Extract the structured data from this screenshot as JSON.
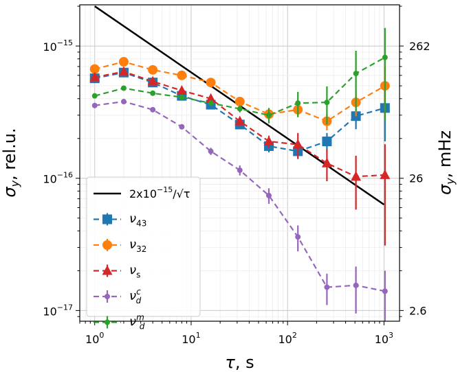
{
  "chart_data": {
    "type": "line",
    "xscale": "log",
    "yscale": "log",
    "xlim": [
      0.7,
      1450
    ],
    "ylim": [
      8.3e-18,
      2.05e-15
    ],
    "grid": true,
    "legend_placement": "lower-left",
    "axes": {
      "x": {
        "label_main": "τ",
        "label_rest": ", s",
        "ticks": [
          {
            "value": 1,
            "base": "10",
            "exp": "0"
          },
          {
            "value": 10,
            "base": "10",
            "exp": "1"
          },
          {
            "value": 100,
            "base": "10",
            "exp": "2"
          },
          {
            "value": 1000,
            "base": "10",
            "exp": "3"
          }
        ]
      },
      "y_left": {
        "label_main": "σ",
        "label_sub": "y",
        "label_rest": ", rel.u.",
        "ticks": [
          {
            "value": 1e-17,
            "base": "10",
            "exp": "−17"
          },
          {
            "value": 1e-16,
            "base": "10",
            "exp": "−16"
          },
          {
            "value": 1e-15,
            "base": "10",
            "exp": "−15"
          }
        ]
      },
      "y_right": {
        "label_main": "σ",
        "label_sub": "y",
        "label_rest": ", mHz",
        "ticks": [
          {
            "value": 1e-17,
            "label": "2.6"
          },
          {
            "value": 1e-16,
            "label": "26"
          },
          {
            "value": 1e-15,
            "label": "262"
          }
        ]
      }
    },
    "reference_line": {
      "color": "#000000",
      "coefficient": 2e-15,
      "x_range": [
        1,
        1000
      ],
      "legend": {
        "prefix": "2x10",
        "exp": "−15",
        "suffix": "/√τ"
      }
    },
    "series": [
      {
        "name": {
          "main": "ν",
          "sub": "43",
          "sup": ""
        },
        "color": "#1f77b4",
        "marker": "square",
        "x": [
          1,
          2,
          4,
          8,
          16,
          32,
          64,
          128,
          256,
          512,
          1024
        ],
        "y": [
          5.7e-16,
          6.3e-16,
          5.3e-16,
          4.2e-16,
          3.6e-16,
          2.55e-16,
          1.75e-16,
          1.6e-16,
          1.9e-16,
          2.95e-16,
          3.4e-16
        ],
        "err": [
          2.5e-17,
          3e-17,
          3e-17,
          2.5e-17,
          2.5e-17,
          2e-17,
          1.8e-17,
          2e-17,
          3e-17,
          6e-17,
          1.5e-16
        ]
      },
      {
        "name": {
          "main": "ν",
          "sub": "32",
          "sup": ""
        },
        "color": "#ff7f0e",
        "marker": "circle",
        "x": [
          1,
          2,
          4,
          8,
          16,
          32,
          64,
          128,
          256,
          512,
          1024
        ],
        "y": [
          6.7e-16,
          7.6e-16,
          6.6e-16,
          6e-16,
          5.3e-16,
          3.8e-16,
          3.05e-16,
          3.3e-16,
          2.7e-16,
          3.75e-16,
          5e-16
        ],
        "err": [
          2e-17,
          2e-17,
          2e-17,
          2e-17,
          2e-17,
          2e-17,
          2.5e-17,
          4e-17,
          4e-17,
          8e-17,
          2e-16
        ]
      },
      {
        "name": {
          "main": "ν",
          "sub": "s",
          "sup": ""
        },
        "color": "#d62728",
        "marker": "triangle",
        "x": [
          1,
          2,
          4,
          8,
          16,
          32,
          64,
          128,
          256,
          512,
          1024
        ],
        "y": [
          5.8e-16,
          6.4e-16,
          5.4e-16,
          4.6e-16,
          4e-16,
          2.7e-16,
          1.9e-16,
          1.8e-16,
          1.3e-16,
          1.03e-16,
          1.06e-16
        ],
        "err": [
          2e-17,
          2.5e-17,
          2.5e-17,
          2.5e-17,
          2e-17,
          2e-17,
          2e-17,
          4e-17,
          3.5e-17,
          4.5e-17,
          7.5e-17
        ]
      },
      {
        "name": {
          "main": "ν",
          "sub": "d",
          "sup": "c"
        },
        "color": "#9467bd",
        "marker": "dot",
        "x": [
          1,
          2,
          4,
          8,
          16,
          32,
          64,
          128,
          256,
          512,
          1024
        ],
        "y": [
          3.55e-16,
          3.8e-16,
          3.3e-16,
          2.45e-16,
          1.6e-16,
          1.15e-16,
          7.4e-17,
          3.6e-17,
          1.5e-17,
          1.55e-17,
          1.4e-17
        ],
        "err": [
          1e-17,
          1e-17,
          1e-17,
          1e-17,
          1e-17,
          1e-17,
          1e-17,
          8e-18,
          4e-18,
          6e-18,
          6e-18
        ]
      },
      {
        "name": {
          "main": "ν",
          "sub": "d",
          "sup": "m"
        },
        "color": "#2ca02c",
        "marker": "dot",
        "x": [
          1,
          2,
          4,
          8,
          16,
          32,
          64,
          128,
          256,
          512,
          1024
        ],
        "y": [
          4.2e-16,
          4.8e-16,
          4.4e-16,
          4.1e-16,
          3.7e-16,
          3.35e-16,
          3e-16,
          3.7e-16,
          3.75e-16,
          6.2e-16,
          8.2e-16
        ],
        "err": [
          1.2e-17,
          1.5e-17,
          1.5e-17,
          1.5e-17,
          1.5e-17,
          2e-17,
          4e-17,
          8e-17,
          1.2e-16,
          3e-16,
          5.5e-16
        ]
      }
    ]
  }
}
